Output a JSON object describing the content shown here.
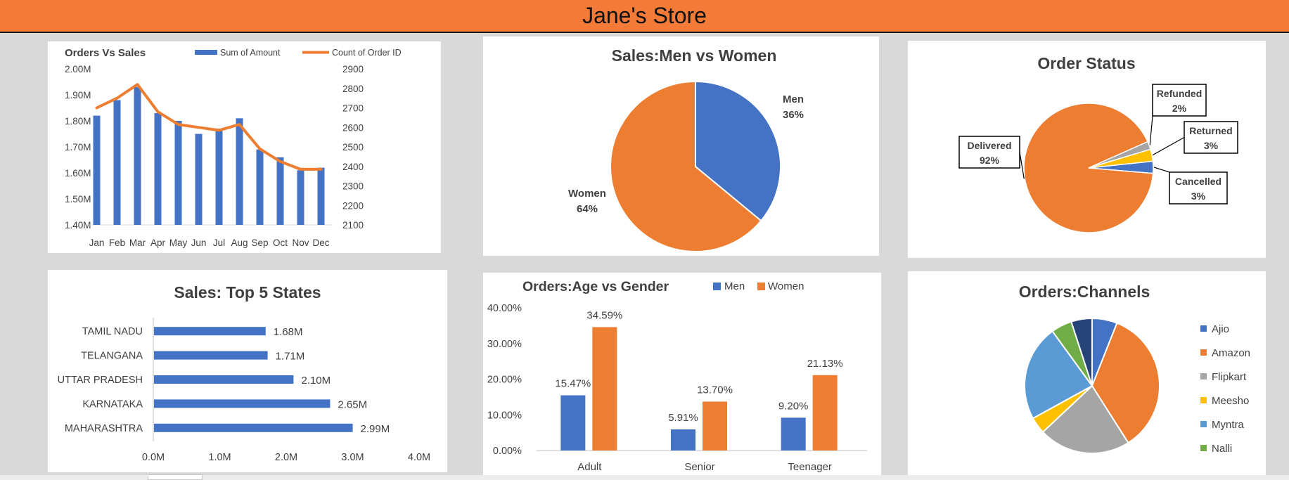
{
  "header": {
    "title": "Jane's Store"
  },
  "colors": {
    "header_bg": "#f47a38",
    "blue": "#4472c4",
    "orange": "#ed7d31",
    "gray": "#a5a5a5",
    "yellow": "#ffc000",
    "lightblue": "#5b9bd5",
    "green": "#70ad47",
    "navy": "#264478",
    "dashboard_bg": "#d9d9d9"
  },
  "chart_data": [
    {
      "id": "orders-vs-sales",
      "type": "bar+line",
      "title": "Orders Vs Sales",
      "categories": [
        "Jan",
        "Feb",
        "Mar",
        "Apr",
        "May",
        "Jun",
        "Jul",
        "Aug",
        "Sep",
        "Oct",
        "Nov",
        "Dec"
      ],
      "series": [
        {
          "name": "Sum of Amount",
          "kind": "bar",
          "axis": "left",
          "values": [
            1.82,
            1.88,
            1.93,
            1.83,
            1.8,
            1.75,
            1.77,
            1.81,
            1.69,
            1.66,
            1.61,
            1.62
          ]
        },
        {
          "name": "Count of Order ID",
          "kind": "line",
          "axis": "right",
          "values": [
            2700,
            2750,
            2820,
            2680,
            2615,
            2600,
            2585,
            2615,
            2490,
            2425,
            2385,
            2385
          ]
        }
      ],
      "y_left": {
        "min": 1.4,
        "max": 2.0,
        "ticks": [
          "1.40M",
          "1.50M",
          "1.60M",
          "1.70M",
          "1.80M",
          "1.90M",
          "2.00M"
        ]
      },
      "y_right": {
        "min": 2100,
        "max": 2900,
        "ticks": [
          "2100",
          "2200",
          "2300",
          "2400",
          "2500",
          "2600",
          "2700",
          "2800",
          "2900"
        ]
      },
      "legend_position": "top"
    },
    {
      "id": "sales-men-women",
      "type": "pie",
      "title": "Sales:Men vs Women",
      "slices": [
        {
          "name": "Men",
          "value": 36,
          "label": "36%"
        },
        {
          "name": "Women",
          "value": 64,
          "label": "64%"
        }
      ]
    },
    {
      "id": "order-status",
      "type": "pie",
      "title": "Order Status",
      "slices": [
        {
          "name": "Cancelled",
          "value": 3,
          "label": "3%"
        },
        {
          "name": "Delivered",
          "value": 92,
          "label": "92%"
        },
        {
          "name": "Refunded",
          "value": 2,
          "label": "2%"
        },
        {
          "name": "Returned",
          "value": 3,
          "label": "3%"
        }
      ]
    },
    {
      "id": "top5-states",
      "type": "bar",
      "orientation": "horizontal",
      "title": "Sales: Top 5 States",
      "categories": [
        "TAMIL NADU",
        "TELANGANA",
        "UTTAR PRADESH",
        "KARNATAKA",
        "MAHARASHTRA"
      ],
      "values": [
        1.68,
        1.71,
        2.1,
        2.65,
        2.99
      ],
      "value_labels": [
        "1.68M",
        "1.71M",
        "2.10M",
        "2.65M",
        "2.99M"
      ],
      "xlim": [
        0,
        4
      ],
      "x_ticks": [
        "0.0M",
        "1.0M",
        "2.0M",
        "3.0M",
        "4.0M"
      ]
    },
    {
      "id": "age-vs-gender",
      "type": "bar",
      "title": "Orders:Age vs Gender",
      "categories": [
        "Adult",
        "Senior",
        "Teenager"
      ],
      "series": [
        {
          "name": "Men",
          "values": [
            15.47,
            5.91,
            9.2
          ],
          "labels": [
            "15.47%",
            "5.91%",
            "9.20%"
          ]
        },
        {
          "name": "Women",
          "values": [
            34.59,
            13.7,
            21.13
          ],
          "labels": [
            "34.59%",
            "13.70%",
            "21.13%"
          ]
        }
      ],
      "ylim": [
        0,
        40
      ],
      "y_ticks": [
        "0.00%",
        "10.00%",
        "20.00%",
        "30.00%",
        "40.00%"
      ],
      "legend_position": "top"
    },
    {
      "id": "channels",
      "type": "pie",
      "title": "Orders:Channels",
      "slices": [
        {
          "name": "Ajio",
          "value": 6
        },
        {
          "name": "Amazon",
          "value": 35
        },
        {
          "name": "Flipkart",
          "value": 22
        },
        {
          "name": "Meesho",
          "value": 4
        },
        {
          "name": "Myntra",
          "value": 23
        },
        {
          "name": "Nalli",
          "value": 5
        },
        {
          "name": "",
          "value": 5
        }
      ],
      "legend": [
        "Ajio",
        "Amazon",
        "Flipkart",
        "Meesho",
        "Myntra",
        "Nalli"
      ],
      "legend_position": "right"
    }
  ]
}
